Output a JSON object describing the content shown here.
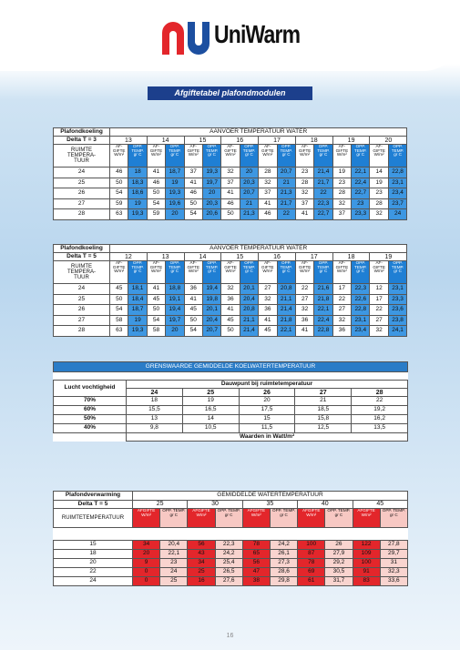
{
  "header": {
    "brand": "UniWarm",
    "title": "Afgiftetabel plafondmodulen"
  },
  "tables": [
    {
      "label": "Plafondkoeling",
      "delta": "Delta T = 3",
      "group": "AANVOER TEMPERATUUR WATER",
      "row_header": "RUIMTE\nTEMPERA-\nTUUR",
      "sub": [
        "AF-\nGIFTE\nW/m²",
        "OPP.\nTEMP.\ngr C"
      ],
      "columns": [
        "13",
        "14",
        "15",
        "16",
        "17",
        "18",
        "19",
        "20"
      ],
      "rows": [
        {
          "temp": "24",
          "cells": [
            "46",
            "18",
            "41",
            "18,7",
            "37",
            "19,3",
            "32",
            "20",
            "28",
            "20,7",
            "23",
            "21,4",
            "19",
            "22,1",
            "14",
            "22,8"
          ]
        },
        {
          "temp": "25",
          "cells": [
            "50",
            "18,3",
            "46",
            "19",
            "41",
            "19,7",
            "37",
            "20,3",
            "32",
            "21",
            "28",
            "21,7",
            "23",
            "22,4",
            "19",
            "23,1"
          ]
        },
        {
          "temp": "26",
          "cells": [
            "54",
            "18,6",
            "50",
            "19,3",
            "46",
            "20",
            "41",
            "20,7",
            "37",
            "21,3",
            "32",
            "22",
            "28",
            "22,7",
            "23",
            "23,4"
          ]
        },
        {
          "temp": "27",
          "cells": [
            "59",
            "19",
            "54",
            "19,6",
            "50",
            "20,3",
            "46",
            "21",
            "41",
            "21,7",
            "37",
            "22,3",
            "32",
            "23",
            "28",
            "23,7"
          ]
        },
        {
          "temp": "28",
          "cells": [
            "63",
            "19,3",
            "59",
            "20",
            "54",
            "20,6",
            "50",
            "21,3",
            "46",
            "22",
            "41",
            "22,7",
            "37",
            "23,3",
            "32",
            "24"
          ]
        }
      ]
    },
    {
      "label": "Plafondkoeling",
      "delta": "Delta T = 5",
      "group": "AANVOER TEMPERATUUR WATER",
      "row_header": "RUIMTE\nTEMPERA-\nTUUR",
      "sub": [
        "AF-\nGIFTE\nW/m²",
        "OPP.\nTEMP.\ngr C"
      ],
      "columns": [
        "12",
        "13",
        "14",
        "15",
        "16",
        "17",
        "18",
        "19"
      ],
      "rows": [
        {
          "temp": "24",
          "cells": [
            "45",
            "18,1",
            "41",
            "18,8",
            "36",
            "19,4",
            "32",
            "20,1",
            "27",
            "20,8",
            "22",
            "21,6",
            "17",
            "22,3",
            "12",
            "23,1"
          ]
        },
        {
          "temp": "25",
          "cells": [
            "50",
            "18,4",
            "45",
            "19,1",
            "41",
            "19,8",
            "36",
            "20,4",
            "32",
            "21,1",
            "27",
            "21,8",
            "22",
            "22,6",
            "17",
            "23,3"
          ]
        },
        {
          "temp": "26",
          "cells": [
            "54",
            "18,7",
            "50",
            "19,4",
            "45",
            "20,1",
            "41",
            "20,8",
            "36",
            "21,4",
            "32",
            "22,1",
            "27",
            "22,8",
            "22",
            "23,6"
          ]
        },
        {
          "temp": "27",
          "cells": [
            "58",
            "19",
            "54",
            "19,7",
            "50",
            "20,4",
            "45",
            "21,1",
            "41",
            "21,8",
            "36",
            "22,4",
            "32",
            "23,1",
            "27",
            "23,8"
          ]
        },
        {
          "temp": "28",
          "cells": [
            "63",
            "19,3",
            "58",
            "20",
            "54",
            "20,7",
            "50",
            "21,4",
            "45",
            "22,1",
            "41",
            "22,8",
            "36",
            "23,4",
            "32",
            "24,1"
          ]
        }
      ]
    }
  ],
  "dew": {
    "title": "GRENSWAARDE GEMIDDELDE KOELWATERTEMPERATUUR",
    "humidity_label": "Lucht vochtigheid",
    "dewpoint_label": "Dauwpunt bij ruimtetemperatuur",
    "columns": [
      "24",
      "25",
      "26",
      "27",
      "28"
    ],
    "rows": [
      {
        "label": "70%",
        "values": [
          "18",
          "19",
          "20",
          "21",
          "22"
        ]
      },
      {
        "label": "60%",
        "values": [
          "15,5",
          "16,5",
          "17,5",
          "18,5",
          "19,2"
        ]
      },
      {
        "label": "50%",
        "values": [
          "13",
          "14",
          "15",
          "15,8",
          "16,2"
        ]
      },
      {
        "label": "40%",
        "values": [
          "9,8",
          "10,5",
          "11,5",
          "12,5",
          "13,5"
        ]
      }
    ],
    "footer": "Waarden in Watt/m²"
  },
  "heating": {
    "label": "Plafondverwarming",
    "delta": "Delta T = 5",
    "group": "GEMIDDELDE WATERTEMPERATUUR",
    "row_header": "RUIMTETEMPERATUUR",
    "sub": [
      "AFGIFTE\nW/m²",
      "OPP. TEMP.\ngr C"
    ],
    "columns": [
      "25",
      "30",
      "35",
      "40",
      "45"
    ],
    "rows": [
      {
        "temp": "15",
        "cells": [
          "34",
          "20,4",
          "56",
          "22,3",
          "78",
          "24,2",
          "100",
          "26",
          "122",
          "27,8"
        ]
      },
      {
        "temp": "18",
        "cells": [
          "20",
          "22,1",
          "43",
          "24,2",
          "65",
          "26,1",
          "87",
          "27,9",
          "109",
          "29,7"
        ]
      },
      {
        "temp": "20",
        "cells": [
          "9",
          "23",
          "34",
          "25,4",
          "56",
          "27,3",
          "78",
          "29,2",
          "100",
          "31"
        ]
      },
      {
        "temp": "22",
        "cells": [
          "0",
          "24",
          "25",
          "26,5",
          "47",
          "28,6",
          "69",
          "30,5",
          "91",
          "32,3"
        ]
      },
      {
        "temp": "24",
        "cells": [
          "0",
          "25",
          "16",
          "27,6",
          "38",
          "29,8",
          "61",
          "31,7",
          "83",
          "33,6"
        ]
      }
    ]
  },
  "page_number": "16"
}
